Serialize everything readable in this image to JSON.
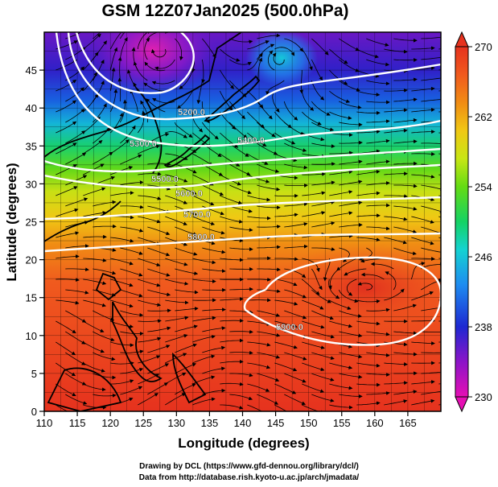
{
  "title": "GSM 12Z07Jan2025 (500.0hPa)",
  "x_axis": {
    "label": "Longitude (degrees)",
    "ticks": [
      110,
      115,
      120,
      125,
      130,
      135,
      140,
      145,
      150,
      155,
      160,
      165
    ],
    "range": [
      110,
      170
    ]
  },
  "y_axis": {
    "label": "Latitude  (degrees)",
    "ticks": [
      0,
      5,
      10,
      15,
      20,
      25,
      30,
      35,
      40,
      45
    ],
    "range": [
      0,
      50
    ]
  },
  "colorbar": {
    "ticks": [
      230,
      238,
      246,
      254,
      262,
      270
    ],
    "range": [
      230,
      270
    ],
    "colors": [
      "#e60fb4",
      "#8c14c8",
      "#1e28d2",
      "#1e8cf0",
      "#14d2d2",
      "#14d264",
      "#64dc14",
      "#c8e614",
      "#f0c814",
      "#f08c14",
      "#f05a1e",
      "#e6321e"
    ]
  },
  "contours": [
    {
      "label": "5200.0"
    },
    {
      "label": "5300.0"
    },
    {
      "label": "5400.0"
    },
    {
      "label": "5500.0"
    },
    {
      "label": "5600.0"
    },
    {
      "label": "5700.0"
    },
    {
      "label": "5800.0"
    },
    {
      "label": "5900.0"
    }
  ],
  "credits": {
    "line1": "Drawing by DCL (https://www.gfd-dennou.org/library/dcl/)",
    "line2": "Data from http://database.rish.kyoto-u.ac.jp/arch/jmadata/"
  }
}
